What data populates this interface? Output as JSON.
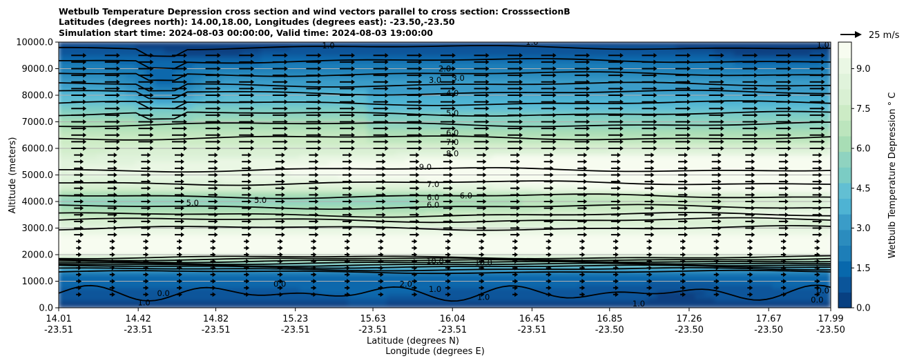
{
  "chart_data": {
    "type": "contour",
    "title_lines": [
      "Wetbulb Temperature Depression cross section and wind vectors parallel to cross section: CrosssectionB",
      "Latitudes (degrees north): 14.00,18.00, Longitudes (degrees east): -23.50,-23.50",
      "Simulation start time: 2024-08-03 00:00:00, Valid time: 2024-08-03 19:00:00"
    ],
    "xlabel_lat": "Latitude (degrees N)",
    "xlabel_lon": "Longitude (degrees E)",
    "ylabel": "Altitude (meters)",
    "ylim": [
      0,
      10000
    ],
    "xlim": [
      14.01,
      17.99
    ],
    "yticks": [
      "0.0",
      "1000.0",
      "2000.0",
      "3000.0",
      "4000.0",
      "5000.0",
      "6000.0",
      "7000.0",
      "8000.0",
      "9000.0",
      "10000.0"
    ],
    "xticks": [
      {
        "lat": "14.01",
        "lon": "-23.51",
        "pos": 14.01
      },
      {
        "lat": "14.42",
        "lon": "-23.51",
        "pos": 14.42
      },
      {
        "lat": "14.82",
        "lon": "-23.51",
        "pos": 14.82
      },
      {
        "lat": "15.23",
        "lon": "-23.51",
        "pos": 15.23
      },
      {
        "lat": "15.63",
        "lon": "-23.51",
        "pos": 15.63
      },
      {
        "lat": "16.04",
        "lon": "-23.51",
        "pos": 16.04
      },
      {
        "lat": "16.45",
        "lon": "-23.51",
        "pos": 16.45
      },
      {
        "lat": "16.85",
        "lon": "-23.50",
        "pos": 16.85
      },
      {
        "lat": "17.26",
        "lon": "-23.50",
        "pos": 17.26
      },
      {
        "lat": "17.67",
        "lon": "-23.50",
        "pos": 17.67
      },
      {
        "lat": "17.99",
        "lon": "-23.50",
        "pos": 17.99
      }
    ],
    "colorbar": {
      "label": "Wetbulb Temperature Depression $^\\circ$C",
      "label_display": "Wetbulb Temperature Depression ° C",
      "min": 0,
      "max": 10,
      "ticks": [
        "0.0",
        "1.5",
        "3.0",
        "4.5",
        "6.0",
        "7.5",
        "9.0"
      ],
      "tick_values": [
        0,
        1.5,
        3.0,
        4.5,
        6.0,
        7.5,
        9.0
      ],
      "colors": [
        "#084081",
        "#0b559a",
        "#0868ac",
        "#1d7eb8",
        "#2b8cbe",
        "#3a9cc8",
        "#4eb3d3",
        "#62bfd3",
        "#7bccc4",
        "#8fd3c0",
        "#a8ddb5",
        "#bce5bd",
        "#ccebc5",
        "#d9f0d3",
        "#e0f3db",
        "#eaf7e4",
        "#f7fcf0"
      ]
    },
    "quiver_key": {
      "label": "25 m/s"
    },
    "wind_vector_rows_m": [
      500,
      750,
      1000,
      1250,
      1500,
      1750,
      2000,
      2250,
      2500,
      2750,
      3000,
      3250,
      3500,
      3750,
      4000,
      4250,
      4500,
      4750,
      5000,
      5250,
      5500,
      5750,
      6000,
      6250,
      6500,
      6750,
      7000,
      7250,
      7500,
      7750,
      8000,
      8250,
      8500,
      8750,
      9000,
      9250,
      9500
    ],
    "contour_labels": [
      {
        "text": "1.0",
        "x": 16.45,
        "y": 10000
      },
      {
        "text": "1.0",
        "x": 17.95,
        "y": 9900
      },
      {
        "text": "1.0",
        "x": 15.4,
        "y": 9870
      },
      {
        "text": "2.0",
        "x": 16.0,
        "y": 9000
      },
      {
        "text": "3.0",
        "x": 16.07,
        "y": 8650
      },
      {
        "text": "3.0",
        "x": 15.95,
        "y": 8570
      },
      {
        "text": "4.0",
        "x": 16.04,
        "y": 8080
      },
      {
        "text": "5.0",
        "x": 16.04,
        "y": 7330
      },
      {
        "text": "6.0",
        "x": 16.04,
        "y": 6580
      },
      {
        "text": "7.0",
        "x": 16.04,
        "y": 6230
      },
      {
        "text": "8.0",
        "x": 16.04,
        "y": 5800
      },
      {
        "text": "9.0",
        "x": 15.9,
        "y": 5300
      },
      {
        "text": "7.0",
        "x": 15.94,
        "y": 4650
      },
      {
        "text": "6.0",
        "x": 15.94,
        "y": 4150
      },
      {
        "text": "6.0",
        "x": 16.11,
        "y": 4220
      },
      {
        "text": "6.0",
        "x": 15.94,
        "y": 3870
      },
      {
        "text": "5.0",
        "x": 14.7,
        "y": 3950
      },
      {
        "text": "5.0",
        "x": 15.05,
        "y": 4050
      },
      {
        "text": "10.0",
        "x": 15.95,
        "y": 1750
      },
      {
        "text": "10.0",
        "x": 16.2,
        "y": 1700
      },
      {
        "text": "2.0",
        "x": 15.8,
        "y": 900
      },
      {
        "text": "1.0",
        "x": 15.95,
        "y": 700
      },
      {
        "text": "0.0",
        "x": 15.15,
        "y": 900
      },
      {
        "text": "1.0",
        "x": 16.2,
        "y": 400
      },
      {
        "text": "0.0",
        "x": 14.55,
        "y": 550
      },
      {
        "text": "1.0",
        "x": 14.45,
        "y": 200
      },
      {
        "text": "1.0",
        "x": 17.0,
        "y": 150
      },
      {
        "text": "0.0",
        "x": 17.92,
        "y": 300
      },
      {
        "text": "0.0",
        "x": 17.95,
        "y": 650
      }
    ],
    "grid": true
  }
}
